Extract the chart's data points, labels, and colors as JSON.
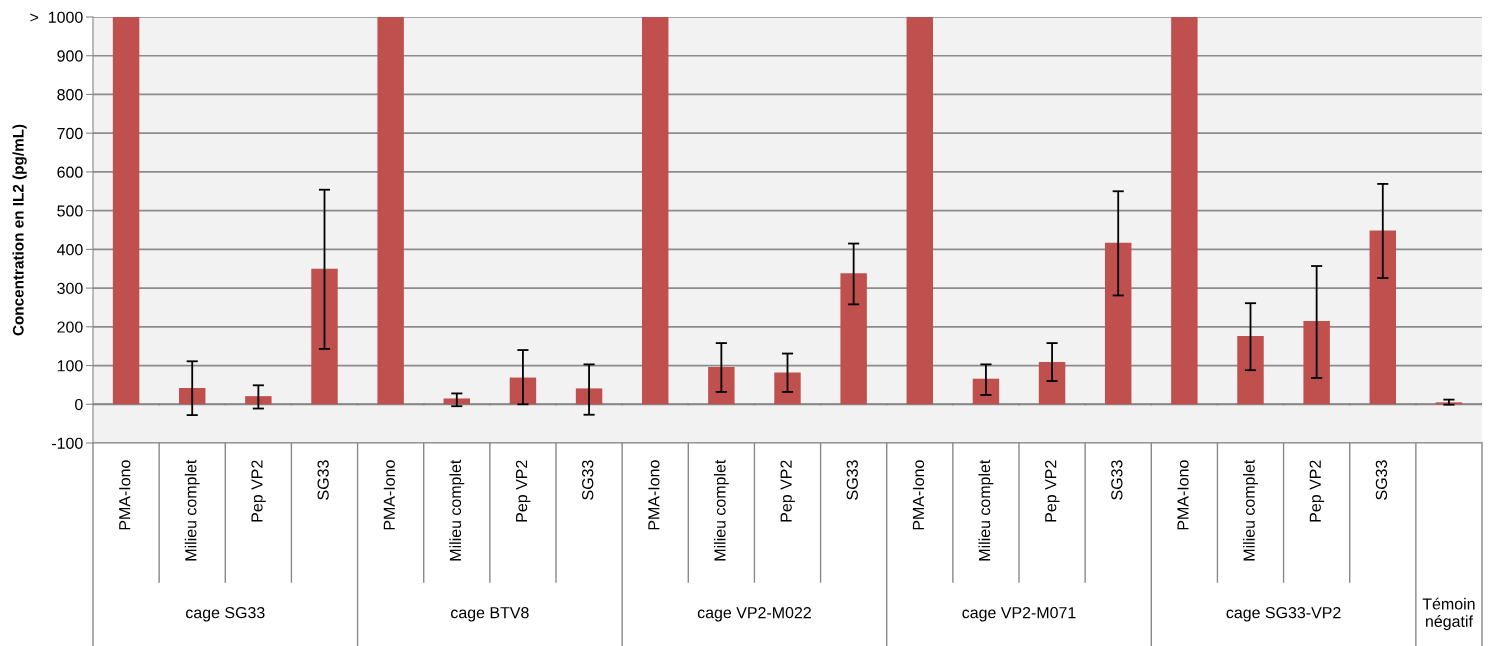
{
  "chart_data": {
    "type": "bar",
    "ylabel": "Concentration en IL2 (pg/mL)",
    "categories": [
      "PMA-Iono",
      "Milieu complet",
      "Pep VP2",
      "SG33",
      "PMA-Iono",
      "Milieu complet",
      "Pep VP2",
      "SG33",
      "PMA-Iono",
      "Milieu complet",
      "Pep VP2",
      "SG33",
      "PMA-Iono",
      "Milieu complet",
      "Pep VP2",
      "SG33",
      "PMA-Iono",
      "Milieu complet",
      "Pep VP2",
      "SG33",
      null
    ],
    "values": [
      1000,
      42,
      21,
      350,
      1000,
      15,
      69,
      41,
      1000,
      96,
      82,
      338,
      1000,
      66,
      109,
      417,
      1000,
      176,
      215,
      449,
      5
    ],
    "errors": [
      null,
      [
        -28,
        111
      ],
      [
        -11,
        49
      ],
      [
        143,
        554
      ],
      null,
      [
        -5,
        28
      ],
      [
        0,
        140
      ],
      [
        -27,
        103
      ],
      null,
      [
        32,
        158
      ],
      [
        32,
        131
      ],
      [
        258,
        415
      ],
      null,
      [
        24,
        103
      ],
      [
        60,
        158
      ],
      [
        281,
        550
      ],
      null,
      [
        88,
        261
      ],
      [
        68,
        357
      ],
      [
        326,
        569
      ],
      [
        -1,
        12
      ]
    ],
    "color": "#c0504d",
    "ylim": [
      -100,
      1000
    ],
    "yticks": [
      -100,
      0,
      100,
      200,
      300,
      400,
      500,
      600,
      700,
      800,
      900,
      {
        "value": 1000,
        "label": ">  1000"
      }
    ],
    "grid": "y",
    "annotations": [
      "cage SG33",
      "cage BTV8",
      "cage VP2-M022",
      "cage VP2-M071",
      "cage SG33-VP2",
      "Témoin\nnégatif"
    ]
  }
}
